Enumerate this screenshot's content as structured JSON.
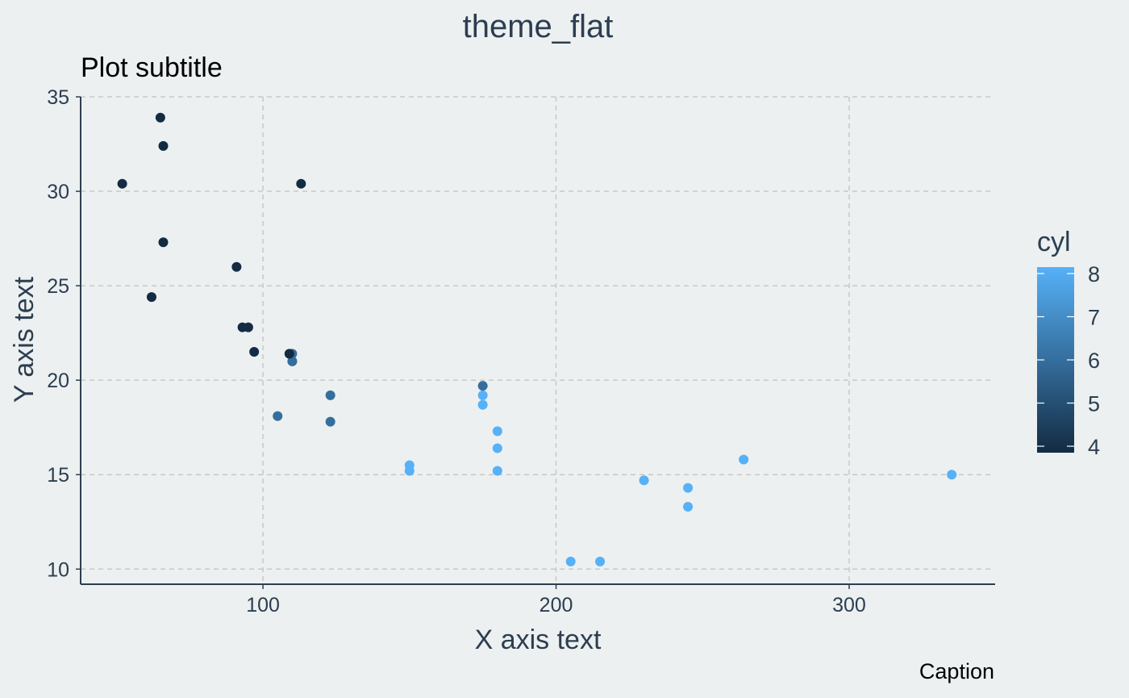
{
  "chart_data": {
    "type": "scatter",
    "title": "theme_flat",
    "subtitle": "Plot subtitle",
    "xlabel": "X axis text",
    "ylabel": "Y axis text",
    "caption": "Caption",
    "xlim": [
      37.8,
      349.8
    ],
    "ylim": [
      9.2,
      35.0
    ],
    "x_ticks": [
      100,
      200,
      300
    ],
    "y_ticks": [
      10,
      15,
      20,
      25,
      30,
      35
    ],
    "grid": true,
    "legend": {
      "title": "cyl",
      "position": "right",
      "type": "colorbar",
      "range": [
        4,
        8
      ],
      "ticks": [
        4,
        5,
        6,
        7,
        8
      ],
      "low_color": "#132b43",
      "high_color": "#56b1f7"
    },
    "colors": {
      "background": "#ecf0f1",
      "text": "#2c3e50",
      "grid": "#c8c8c8",
      "axis_line": "#2c3e50"
    },
    "points": [
      {
        "x": 110,
        "y": 21.0,
        "cyl": 6
      },
      {
        "x": 110,
        "y": 21.0,
        "cyl": 6
      },
      {
        "x": 93,
        "y": 22.8,
        "cyl": 4
      },
      {
        "x": 110,
        "y": 21.4,
        "cyl": 6
      },
      {
        "x": 175,
        "y": 18.7,
        "cyl": 8
      },
      {
        "x": 105,
        "y": 18.1,
        "cyl": 6
      },
      {
        "x": 245,
        "y": 14.3,
        "cyl": 8
      },
      {
        "x": 62,
        "y": 24.4,
        "cyl": 4
      },
      {
        "x": 95,
        "y": 22.8,
        "cyl": 4
      },
      {
        "x": 123,
        "y": 19.2,
        "cyl": 6
      },
      {
        "x": 123,
        "y": 17.8,
        "cyl": 6
      },
      {
        "x": 180,
        "y": 16.4,
        "cyl": 8
      },
      {
        "x": 180,
        "y": 17.3,
        "cyl": 8
      },
      {
        "x": 180,
        "y": 15.2,
        "cyl": 8
      },
      {
        "x": 205,
        "y": 10.4,
        "cyl": 8
      },
      {
        "x": 215,
        "y": 10.4,
        "cyl": 8
      },
      {
        "x": 230,
        "y": 14.7,
        "cyl": 8
      },
      {
        "x": 66,
        "y": 32.4,
        "cyl": 4
      },
      {
        "x": 52,
        "y": 30.4,
        "cyl": 4
      },
      {
        "x": 65,
        "y": 33.9,
        "cyl": 4
      },
      {
        "x": 97,
        "y": 21.5,
        "cyl": 4
      },
      {
        "x": 150,
        "y": 15.5,
        "cyl": 8
      },
      {
        "x": 150,
        "y": 15.2,
        "cyl": 8
      },
      {
        "x": 245,
        "y": 13.3,
        "cyl": 8
      },
      {
        "x": 175,
        "y": 19.2,
        "cyl": 8
      },
      {
        "x": 66,
        "y": 27.3,
        "cyl": 4
      },
      {
        "x": 91,
        "y": 26.0,
        "cyl": 4
      },
      {
        "x": 113,
        "y": 30.4,
        "cyl": 4
      },
      {
        "x": 264,
        "y": 15.8,
        "cyl": 8
      },
      {
        "x": 175,
        "y": 19.7,
        "cyl": 6
      },
      {
        "x": 335,
        "y": 15.0,
        "cyl": 8
      },
      {
        "x": 109,
        "y": 21.4,
        "cyl": 4
      }
    ]
  }
}
